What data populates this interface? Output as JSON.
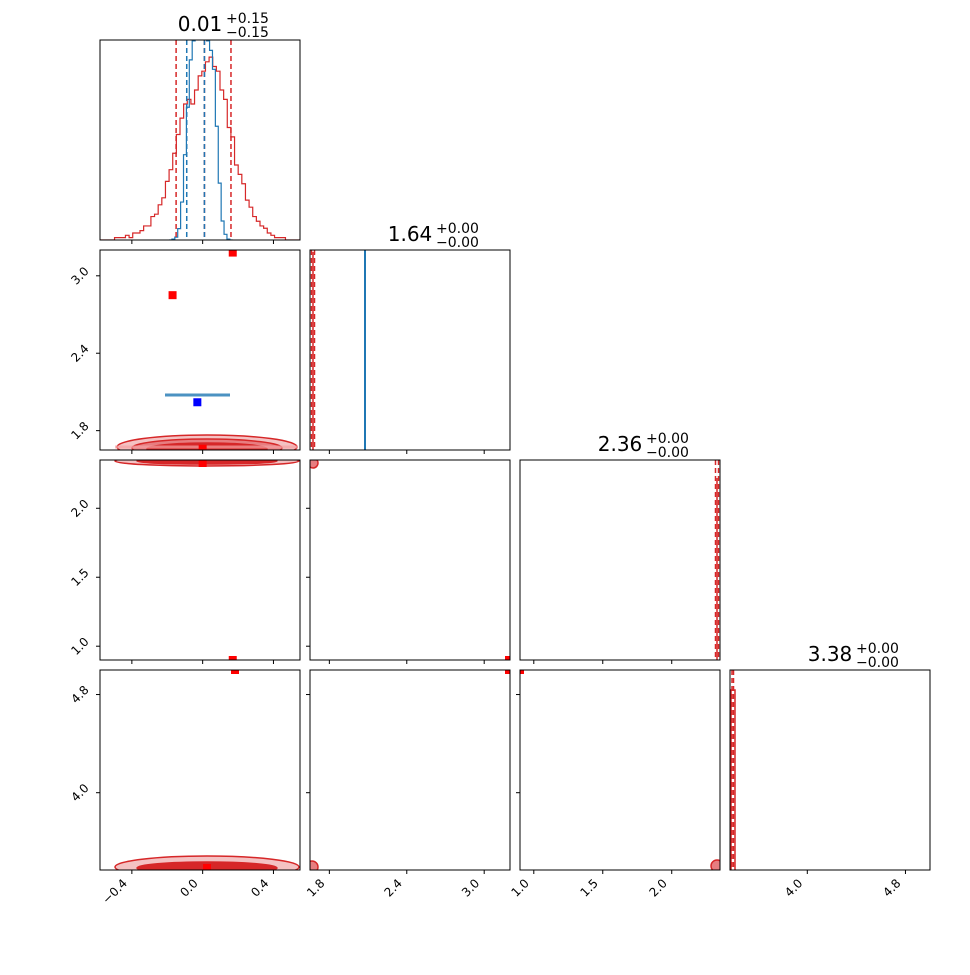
{
  "colors": {
    "red": "#d62728",
    "red_marker": "#ff0000",
    "blue": "#1f77b4",
    "blue_marker": "#0000ff",
    "frame": "#000000"
  },
  "chart_data": {
    "type": "scatter",
    "subtype": "corner",
    "grid": false,
    "parameters": [
      {
        "index": 0,
        "range": [
          -0.58,
          0.55
        ],
        "ticks": [
          -0.4,
          0.0,
          0.4
        ],
        "tick_labels": [
          "−0.4",
          "0.0",
          "0.4"
        ]
      },
      {
        "index": 1,
        "range": [
          1.65,
          3.2
        ],
        "ticks": [
          1.8,
          2.4,
          3.0
        ],
        "tick_labels": [
          "1.8",
          "2.4",
          "3.0"
        ]
      },
      {
        "index": 2,
        "range": [
          0.9,
          2.35
        ],
        "ticks": [
          1.0,
          1.5,
          2.0
        ],
        "tick_labels": [
          "1.0",
          "1.5",
          "2.0"
        ]
      },
      {
        "index": 3,
        "range": [
          3.37,
          5.0
        ],
        "ticks": [
          4.0,
          4.8
        ],
        "tick_labels": [
          "4.0",
          "4.8"
        ]
      }
    ],
    "titles": [
      {
        "value": "0.01",
        "plus": "+0.15",
        "minus": "−0.15"
      },
      {
        "value": "1.64",
        "plus": "+0.00",
        "minus": "−0.00"
      },
      {
        "value": "2.36",
        "plus": "+0.00",
        "minus": "−0.00"
      },
      {
        "value": "3.38",
        "plus": "+0.00",
        "minus": "−0.00"
      }
    ],
    "red_quantiles_param0": [
      -0.15,
      0.01,
      0.16
    ],
    "blue_quantiles_param0": [
      -0.09,
      0.01
    ],
    "red_hist_param0": {
      "edges_start": -0.58,
      "edges_end": 0.55,
      "counts": [
        0,
        0,
        0,
        0,
        1,
        1,
        1,
        2,
        1,
        3,
        3,
        4,
        6,
        6,
        10,
        11,
        15,
        18,
        25,
        30,
        37,
        45,
        52,
        58,
        60,
        58,
        64,
        70,
        72,
        76,
        78,
        74,
        72,
        64,
        60,
        48,
        44,
        32,
        28,
        24,
        17,
        14,
        10,
        8,
        6,
        5,
        3,
        2,
        1,
        1,
        1,
        0,
        0,
        0,
        0
      ]
    },
    "blue_hist_param0": {
      "edges_start": -0.19,
      "edges_end": 0.17,
      "counts": [
        0,
        1,
        3,
        12,
        40,
        90,
        140,
        190,
        210,
        220,
        225,
        220,
        215,
        210,
        200,
        180,
        120,
        60,
        20,
        6,
        1,
        0
      ]
    },
    "truth_markers": [
      {
        "x": -0.17,
        "y": 2.85
      },
      {
        "x": 0.17,
        "y": 3.18
      },
      {
        "x": 0.0,
        "y": 1.66
      }
    ],
    "blue_point": {
      "x": -0.03,
      "y": 2.02
    }
  }
}
